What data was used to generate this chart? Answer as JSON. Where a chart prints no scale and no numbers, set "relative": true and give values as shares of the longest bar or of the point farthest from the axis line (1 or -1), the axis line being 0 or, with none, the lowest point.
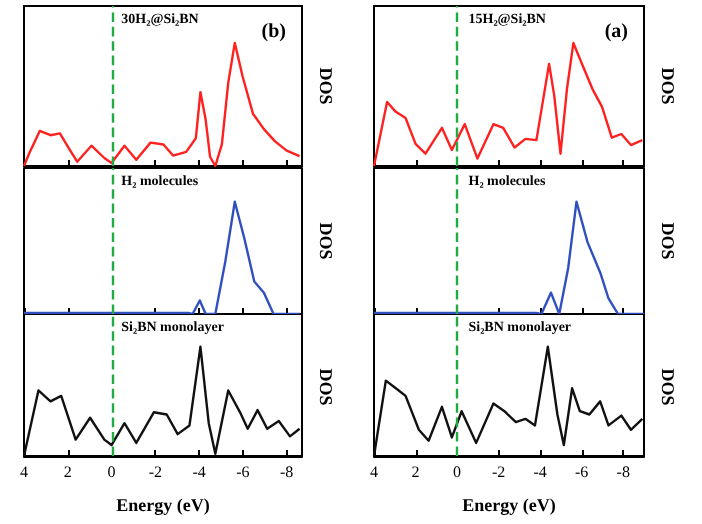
{
  "chart_data": [
    {
      "type": "line",
      "title": "(b)",
      "ylabel": "DOS",
      "annotations": [
        "30H₂@Si₂BN"
      ],
      "relative": true,
      "xlim": [
        4,
        -8.7
      ],
      "xticks": [
        4,
        2,
        0,
        -2,
        -4,
        -6,
        -8
      ],
      "tick_labels": false,
      "ref_lines": [
        {
          "axis": "x",
          "value": 0,
          "color": "#22aa44",
          "line_style": "dashed"
        }
      ],
      "series": [
        {
          "color": "#ff2020",
          "x": [
            4,
            3.77,
            3.28,
            2.79,
            2.36,
            1.97,
            1.57,
            0.92,
            0.33,
            0,
            -0.59,
            -1.13,
            -1.78,
            -2.37,
            -2.81,
            -3.41,
            -3.85,
            -4.06,
            -4.3,
            -4.5,
            -4.74,
            -5.04,
            -5.33,
            -5.63,
            -5.99,
            -6.46,
            -6.96,
            -7.47,
            -8,
            -8.59
          ],
          "values": [
            0,
            0.1,
            0.285,
            0.25,
            0.265,
            0.15,
            0.035,
            0.165,
            0.065,
            0.025,
            0.165,
            0.05,
            0.19,
            0.175,
            0.085,
            0.115,
            0.225,
            0.6,
            0.375,
            0.075,
            0,
            0.175,
            0.675,
            1,
            0.725,
            0.425,
            0.3,
            0.2,
            0.125,
            0.08
          ]
        }
      ]
    },
    {
      "type": "line",
      "ylabel": "DOS",
      "annotations": [
        "H₂ molecules"
      ],
      "relative": true,
      "xlim": [
        4,
        -8.7
      ],
      "xticks": [
        4,
        2,
        0,
        -2,
        -4,
        -6,
        -8
      ],
      "tick_labels": false,
      "ref_lines": [
        {
          "axis": "x",
          "value": 0,
          "color": "#22aa44",
          "line_style": "dashed"
        }
      ],
      "series": [
        {
          "color": "#3050c0",
          "x": [
            4,
            2,
            0,
            -2,
            -3.5,
            -3.7,
            -4.03,
            -4.3,
            -4.74,
            -5.19,
            -5.63,
            -6.07,
            -6.52,
            -6.96,
            -7.4,
            -8.6
          ],
          "values": [
            0.01,
            0.01,
            0.01,
            0.01,
            0.01,
            0,
            0.12,
            0,
            0,
            0.46,
            1,
            0.67,
            0.29,
            0.19,
            0,
            0
          ]
        }
      ]
    },
    {
      "type": "line",
      "ylabel": "DOS",
      "xlabel": "Energy (eV)",
      "annotations": [
        "Si₂BN monolayer"
      ],
      "relative": true,
      "xlim": [
        4,
        -8.7
      ],
      "xticks": [
        4,
        2,
        0,
        -2,
        -4,
        -6,
        -8
      ],
      "tick_labels": "x",
      "ref_lines": [
        {
          "axis": "x",
          "value": 0,
          "color": "#22aa44",
          "line_style": "dashed"
        }
      ],
      "series": [
        {
          "color": "#111111",
          "x": [
            4,
            3.34,
            2.79,
            2.3,
            1.64,
            0.98,
            0.33,
            0,
            -0.59,
            -1.13,
            -1.93,
            -2.52,
            -3.02,
            -3.56,
            -4.06,
            -4.44,
            -4.74,
            -5.33,
            -5.87,
            -6.22,
            -6.67,
            -7.11,
            -7.64,
            -8.15,
            -8.59
          ],
          "values": [
            0,
            0.6,
            0.5,
            0.55,
            0.15,
            0.35,
            0.15,
            0.1,
            0.3,
            0.12,
            0.4,
            0.38,
            0.2,
            0.28,
            1,
            0.3,
            0.02,
            0.6,
            0.4,
            0.25,
            0.42,
            0.25,
            0.32,
            0.18,
            0.25
          ]
        }
      ]
    },
    {
      "type": "line",
      "title": "(a)",
      "ylabel": "DOS",
      "annotations": [
        "15H₂@Si₂BN"
      ],
      "relative": true,
      "xlim": [
        4,
        -9
      ],
      "xticks": [
        4,
        2,
        0,
        -2,
        -4,
        -6,
        -8
      ],
      "tick_labels": false,
      "ref_lines": [
        {
          "axis": "x",
          "value": 0,
          "color": "#22aa44",
          "line_style": "dashed"
        }
      ],
      "series": [
        {
          "color": "#ff2020",
          "x": [
            4,
            3.37,
            2.95,
            2.48,
            2.0,
            1.52,
            0.73,
            0.25,
            -0.37,
            -0.98,
            -1.75,
            -2.22,
            -2.77,
            -3.29,
            -3.82,
            -4.43,
            -4.68,
            -4.98,
            -5.29,
            -5.6,
            -6.06,
            -6.52,
            -6.98,
            -7.45,
            -7.91,
            -8.37,
            -8.92
          ],
          "values": [
            0,
            0.52,
            0.44,
            0.39,
            0.18,
            0.1,
            0.31,
            0.13,
            0.34,
            0.06,
            0.34,
            0.31,
            0.15,
            0.22,
            0.21,
            0.83,
            0.57,
            0.1,
            0.625,
            1,
            0.81,
            0.625,
            0.48,
            0.23,
            0.26,
            0.17,
            0.21
          ]
        }
      ]
    },
    {
      "type": "line",
      "ylabel": "DOS",
      "annotations": [
        "H₂ molecules"
      ],
      "relative": true,
      "xlim": [
        4,
        -9
      ],
      "xticks": [
        4,
        2,
        0,
        -2,
        -4,
        -6,
        -8
      ],
      "tick_labels": false,
      "ref_lines": [
        {
          "axis": "x",
          "value": 0,
          "color": "#22aa44",
          "line_style": "dashed"
        }
      ],
      "series": [
        {
          "color": "#3050c0",
          "x": [
            4,
            2,
            0,
            -2,
            -3.8,
            -4.06,
            -4.52,
            -4.92,
            -5.35,
            -5.75,
            -6.28,
            -6.89,
            -7.29,
            -7.75,
            -9
          ],
          "values": [
            0.01,
            0.01,
            0.01,
            0.01,
            0.01,
            0,
            0.19,
            0,
            0.41,
            1,
            0.64,
            0.37,
            0.14,
            0,
            0
          ]
        }
      ]
    },
    {
      "type": "line",
      "ylabel": "DOS",
      "xlabel": "Energy (eV)",
      "annotations": [
        "Si₂BN monolayer"
      ],
      "relative": true,
      "xlim": [
        4,
        -9
      ],
      "xticks": [
        4,
        2,
        0,
        -2,
        -4,
        -6,
        -8
      ],
      "tick_labels": "x",
      "ref_lines": [
        {
          "axis": "x",
          "value": 0,
          "color": "#22aa44",
          "line_style": "dashed"
        }
      ],
      "series": [
        {
          "color": "#111111",
          "x": [
            4,
            3.43,
            2.95,
            2.48,
            1.84,
            1.37,
            0.73,
            0.25,
            -0.22,
            -0.92,
            -1.75,
            -2.28,
            -2.83,
            -3.29,
            -3.75,
            -4.37,
            -4.83,
            -5.14,
            -5.54,
            -5.91,
            -6.37,
            -6.89,
            -7.29,
            -7.91,
            -8.37,
            -8.92
          ],
          "values": [
            0,
            0.69,
            0.62,
            0.55,
            0.24,
            0.14,
            0.45,
            0.17,
            0.41,
            0.12,
            0.48,
            0.41,
            0.31,
            0.34,
            0.28,
            1,
            0.38,
            0.1,
            0.62,
            0.41,
            0.38,
            0.5,
            0.28,
            0.37,
            0.24,
            0.34
          ]
        }
      ]
    }
  ]
}
